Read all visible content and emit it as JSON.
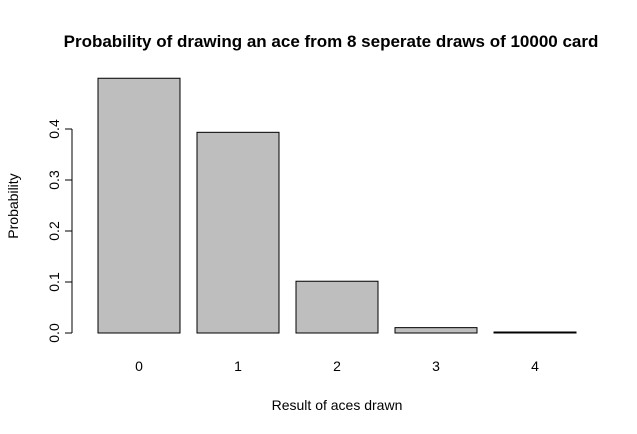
{
  "chart_data": {
    "type": "bar",
    "title": "Probability of drawing an ace from 8 seperate draws of 10000 card",
    "xlabel": "Result of aces drawn",
    "ylabel": "Probability",
    "categories": [
      "0",
      "1",
      "2",
      "3",
      "4"
    ],
    "values": [
      0.4995,
      0.3935,
      0.1015,
      0.0105,
      0.0012
    ],
    "ylim": [
      0,
      0.5
    ],
    "yticks": [
      "0.0",
      "0.1",
      "0.2",
      "0.3",
      "0.4"
    ],
    "grid": false,
    "legend": "none",
    "bar_color": "#bebebe",
    "bar_border_color": "#000000"
  }
}
